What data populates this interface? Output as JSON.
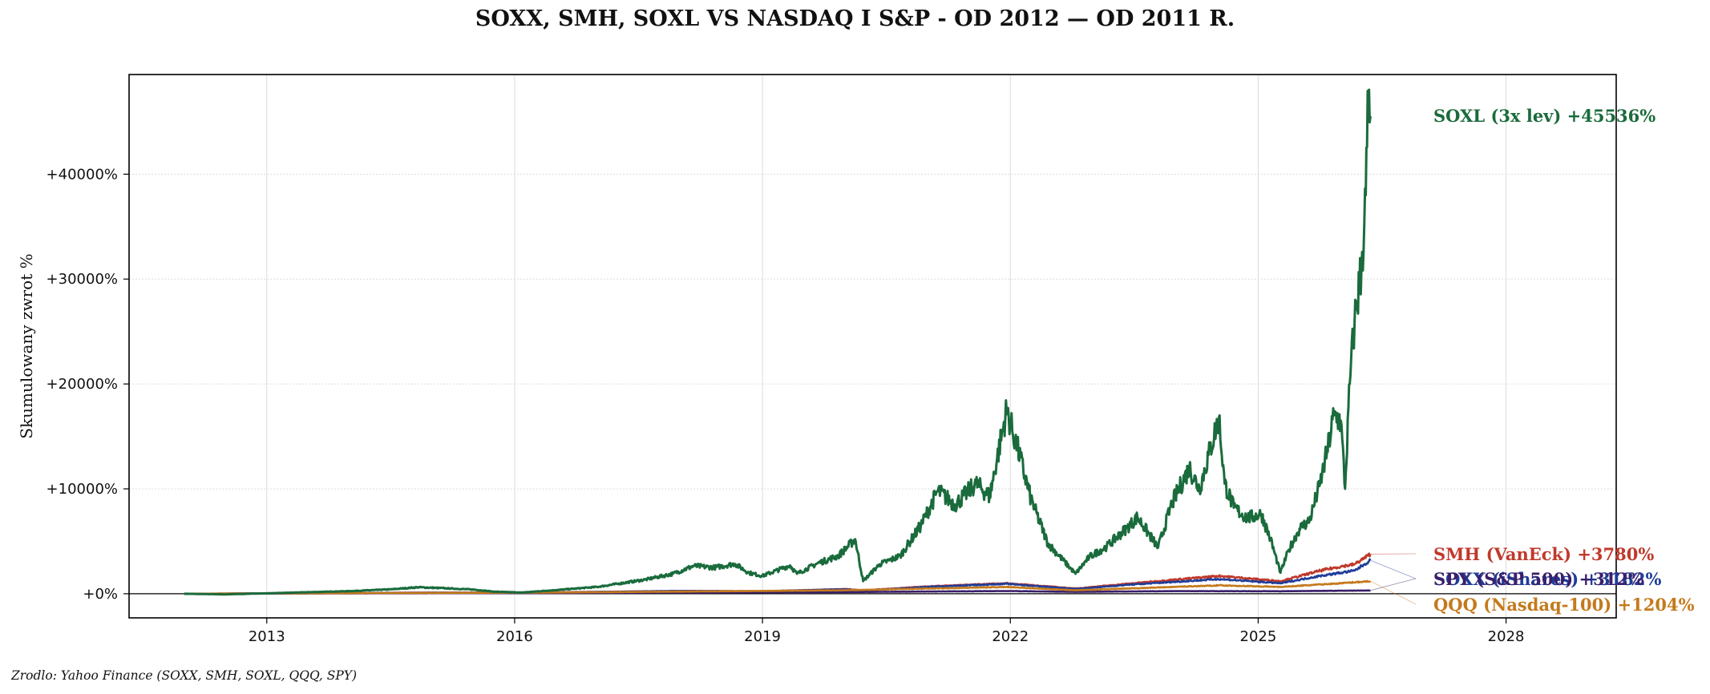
{
  "title": "SOXX, SMH, SOXL VS NASDAQ I S&P - OD 2012 — OD 2011 R.",
  "source": "Zrodlo: Yahoo Finance (SOXX, SMH, SOXL, QQQ, SPY)",
  "chart_data": {
    "type": "line",
    "title": "SOXX, SMH, SOXL VS NASDAQ I S&P - OD 2012 — OD 2011 R.",
    "xlabel": "",
    "ylabel": "Skumulowany zwrot %",
    "xlim": [
      "2011-05-01",
      "2029-05-01"
    ],
    "ylim": [
      -2300,
      49500
    ],
    "x_ticks": [
      "2013",
      "2016",
      "2019",
      "2022",
      "2025",
      "2028"
    ],
    "y_ticks": [
      "+0%",
      "+10000%",
      "+20000%",
      "+30000%",
      "+40000%"
    ],
    "y_tick_values": [
      0,
      10000,
      20000,
      30000,
      40000
    ],
    "grid": true,
    "legend": "inline labels at right end",
    "series": [
      {
        "name": "SOXL (3x lev)",
        "end_label": "+45536%",
        "color": "#1a6b3c",
        "points": [
          [
            "2012-01-01",
            0
          ],
          [
            "2012-07-01",
            -60
          ],
          [
            "2013-01-01",
            40
          ],
          [
            "2013-07-01",
            150
          ],
          [
            "2014-01-01",
            250
          ],
          [
            "2014-07-01",
            420
          ],
          [
            "2014-11-01",
            620
          ],
          [
            "2015-03-01",
            520
          ],
          [
            "2015-07-01",
            400
          ],
          [
            "2015-10-01",
            200
          ],
          [
            "2016-02-01",
            120
          ],
          [
            "2016-07-01",
            350
          ],
          [
            "2017-01-01",
            650
          ],
          [
            "2017-04-01",
            950
          ],
          [
            "2017-08-01",
            1350
          ],
          [
            "2017-12-01",
            1900
          ],
          [
            "2018-03-01",
            2650
          ],
          [
            "2018-06-01",
            2500
          ],
          [
            "2018-09-01",
            2850
          ],
          [
            "2018-11-01",
            2000
          ],
          [
            "2019-01-01",
            1700
          ],
          [
            "2019-05-01",
            2700
          ],
          [
            "2019-06-01",
            1900
          ],
          [
            "2019-09-01",
            2900
          ],
          [
            "2019-12-01",
            3600
          ],
          [
            "2020-02-15",
            5200
          ],
          [
            "2020-03-20",
            1200
          ],
          [
            "2020-06-01",
            2800
          ],
          [
            "2020-09-01",
            3600
          ],
          [
            "2020-12-01",
            6500
          ],
          [
            "2021-02-15",
            9800
          ],
          [
            "2021-05-01",
            8500
          ],
          [
            "2021-08-01",
            10500
          ],
          [
            "2021-10-01",
            9300
          ],
          [
            "2021-12-15",
            17500
          ],
          [
            "2022-02-01",
            14000
          ],
          [
            "2022-04-01",
            9000
          ],
          [
            "2022-06-15",
            4800
          ],
          [
            "2022-10-15",
            1900
          ],
          [
            "2022-12-15",
            3500
          ],
          [
            "2023-03-01",
            4500
          ],
          [
            "2023-06-01",
            6300
          ],
          [
            "2023-07-15",
            7300
          ],
          [
            "2023-10-15",
            4400
          ],
          [
            "2023-12-15",
            8600
          ],
          [
            "2024-03-01",
            12000
          ],
          [
            "2024-04-15",
            10000
          ],
          [
            "2024-07-10",
            16800
          ],
          [
            "2024-08-05",
            10500
          ],
          [
            "2024-09-15",
            8200
          ],
          [
            "2024-11-15",
            7200
          ],
          [
            "2025-01-15",
            7600
          ],
          [
            "2025-02-25",
            5200
          ],
          [
            "2025-04-08",
            2000
          ],
          [
            "2025-05-15",
            4200
          ],
          [
            "2025-07-01",
            6200
          ],
          [
            "2025-08-15",
            7000
          ],
          [
            "2025-10-01",
            10500
          ],
          [
            "2025-11-01",
            13500
          ],
          [
            "2025-12-01",
            17000
          ],
          [
            "2026-01-01",
            16500
          ],
          [
            "2026-01-20",
            10000
          ],
          [
            "2026-02-10",
            20000
          ],
          [
            "2026-03-01",
            26000
          ],
          [
            "2026-04-01",
            31000
          ],
          [
            "2026-04-20",
            38000
          ],
          [
            "2026-05-01",
            47000
          ],
          [
            "2026-05-10",
            45536
          ]
        ]
      },
      {
        "name": "SMH (VanEck)",
        "end_label": "+3780%",
        "color": "#c0392b",
        "points": [
          [
            "2012-01-01",
            0
          ],
          [
            "2013-01-01",
            30
          ],
          [
            "2014-01-01",
            70
          ],
          [
            "2015-01-01",
            110
          ],
          [
            "2016-01-01",
            100
          ],
          [
            "2017-01-01",
            180
          ],
          [
            "2018-01-01",
            270
          ],
          [
            "2019-01-01",
            240
          ],
          [
            "2020-01-01",
            450
          ],
          [
            "2020-03-20",
            320
          ],
          [
            "2021-01-01",
            700
          ],
          [
            "2021-12-15",
            1000
          ],
          [
            "2022-10-15",
            500
          ],
          [
            "2023-06-01",
            950
          ],
          [
            "2024-07-10",
            1700
          ],
          [
            "2025-04-08",
            1200
          ],
          [
            "2025-10-01",
            2200
          ],
          [
            "2026-01-01",
            2600
          ],
          [
            "2026-03-01",
            2800
          ],
          [
            "2026-05-10",
            3780
          ]
        ]
      },
      {
        "name": "SOXX (iShares)",
        "end_label": "+3182%",
        "color": "#1f3d99",
        "points": [
          [
            "2012-01-01",
            0
          ],
          [
            "2013-01-01",
            25
          ],
          [
            "2014-01-01",
            60
          ],
          [
            "2015-01-01",
            100
          ],
          [
            "2016-01-01",
            90
          ],
          [
            "2017-01-01",
            170
          ],
          [
            "2018-01-01",
            260
          ],
          [
            "2019-01-01",
            230
          ],
          [
            "2020-01-01",
            420
          ],
          [
            "2020-03-20",
            300
          ],
          [
            "2021-01-01",
            650
          ],
          [
            "2021-12-15",
            950
          ],
          [
            "2022-10-15",
            450
          ],
          [
            "2023-06-01",
            850
          ],
          [
            "2024-07-10",
            1400
          ],
          [
            "2025-04-08",
            1000
          ],
          [
            "2025-10-01",
            1700
          ],
          [
            "2026-01-01",
            2000
          ],
          [
            "2026-03-01",
            2200
          ],
          [
            "2026-05-10",
            3182
          ]
        ]
      },
      {
        "name": "SPY (S&P 500)",
        "end_label": "+312%",
        "color": "#3b1f6b",
        "points": [
          [
            "2012-01-01",
            0
          ],
          [
            "2014-01-01",
            40
          ],
          [
            "2016-01-01",
            60
          ],
          [
            "2018-01-01",
            110
          ],
          [
            "2020-01-01",
            160
          ],
          [
            "2021-12-15",
            260
          ],
          [
            "2022-10-15",
            180
          ],
          [
            "2024-01-01",
            250
          ],
          [
            "2025-04-08",
            240
          ],
          [
            "2026-05-10",
            312
          ]
        ]
      },
      {
        "name": "QQQ (Nasdaq-100)",
        "end_label": "+1204%",
        "color": "#c47a1c",
        "points": [
          [
            "2012-01-01",
            0
          ],
          [
            "2014-01-01",
            60
          ],
          [
            "2016-01-01",
            100
          ],
          [
            "2018-01-01",
            200
          ],
          [
            "2020-01-01",
            330
          ],
          [
            "2021-12-15",
            650
          ],
          [
            "2022-10-15",
            330
          ],
          [
            "2024-07-10",
            800
          ],
          [
            "2025-04-08",
            650
          ],
          [
            "2026-01-01",
            1000
          ],
          [
            "2026-05-10",
            1204
          ]
        ]
      }
    ]
  }
}
